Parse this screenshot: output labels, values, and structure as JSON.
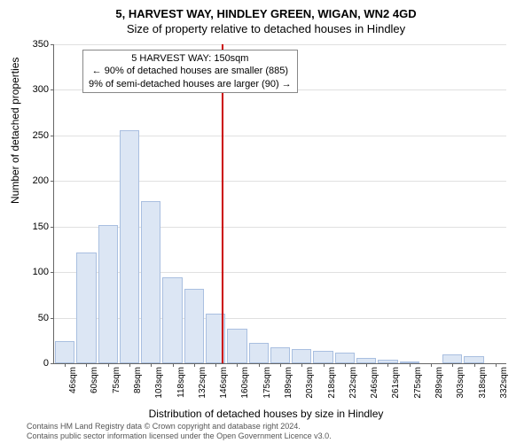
{
  "title_main": "5, HARVEST WAY, HINDLEY GREEN, WIGAN, WN2 4GD",
  "title_sub": "Size of property relative to detached houses in Hindley",
  "ylabel": "Number of detached properties",
  "xlabel": "Distribution of detached houses by size in Hindley",
  "annotation": {
    "line1": "5 HARVEST WAY: 150sqm",
    "line2": "← 90% of detached houses are smaller (885)",
    "line3": "9% of semi-detached houses are larger (90) →"
  },
  "footer_line1": "Contains HM Land Registry data © Crown copyright and database right 2024.",
  "footer_line2": "Contains public sector information licensed under the Open Government Licence v3.0.",
  "chart": {
    "type": "histogram",
    "ylim": [
      0,
      350
    ],
    "ytick_step": 50,
    "background_color": "#ffffff",
    "grid_color": "#e0e0e0",
    "bar_fill": "#dce6f4",
    "bar_stroke": "#a9bfe0",
    "marker_color": "#cc0000",
    "axis_color": "#666666",
    "label_fontsize": 12,
    "tick_fontsize": 11,
    "xtick_fontsize": 10,
    "marker_x_sqm": 150,
    "x_start_sqm": 46,
    "x_step_sqm": 14.3,
    "categories": [
      "46sqm",
      "60sqm",
      "75sqm",
      "89sqm",
      "103sqm",
      "118sqm",
      "132sqm",
      "146sqm",
      "160sqm",
      "175sqm",
      "189sqm",
      "203sqm",
      "218sqm",
      "232sqm",
      "246sqm",
      "261sqm",
      "275sqm",
      "289sqm",
      "303sqm",
      "318sqm",
      "332sqm"
    ],
    "values": [
      24,
      122,
      152,
      256,
      178,
      94,
      82,
      54,
      38,
      22,
      18,
      16,
      14,
      12,
      6,
      4,
      2,
      0,
      10,
      8,
      0
    ]
  }
}
